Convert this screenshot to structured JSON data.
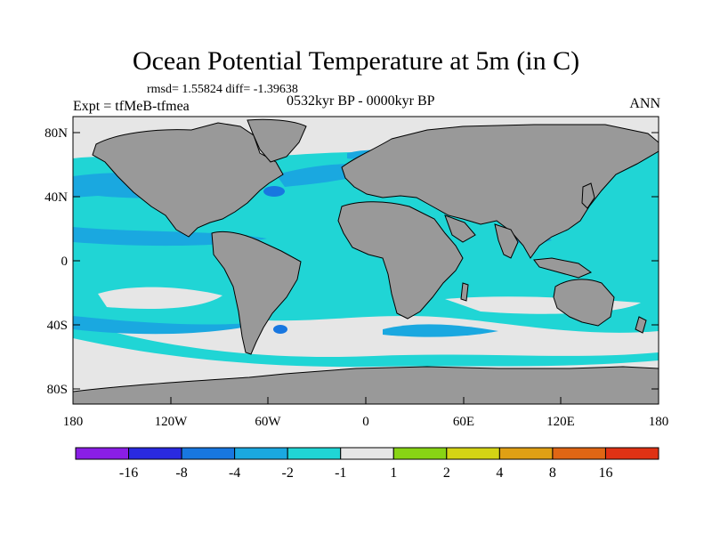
{
  "title": "Ocean Potential Temperature at 5m (in C)",
  "stats": "rmsd= 1.55824  diff= -1.39638",
  "experiment": "Expt = tfMeB-tfmea",
  "period": "0532kyr BP - 0000kyr BP",
  "season": "ANN",
  "map": {
    "lat_ticks": [
      "80N",
      "40N",
      "0",
      "40S",
      "80S"
    ],
    "lon_ticks": [
      "180",
      "120W",
      "60W",
      "0",
      "60E",
      "120E",
      "180"
    ],
    "land_color": "#999999",
    "ocean_base_color": "#e6e6e6"
  },
  "colorbar": {
    "colors": [
      "#8a1ee6",
      "#2a2ae0",
      "#1877e0",
      "#1aa8e0",
      "#20d5d5",
      "#e6e6e6",
      "#88d414",
      "#d4d414",
      "#e0a014",
      "#e06614",
      "#e03214"
    ],
    "labels": [
      "-16",
      "-8",
      "-4",
      "-2",
      "-1",
      "1",
      "2",
      "4",
      "8",
      "16"
    ]
  }
}
